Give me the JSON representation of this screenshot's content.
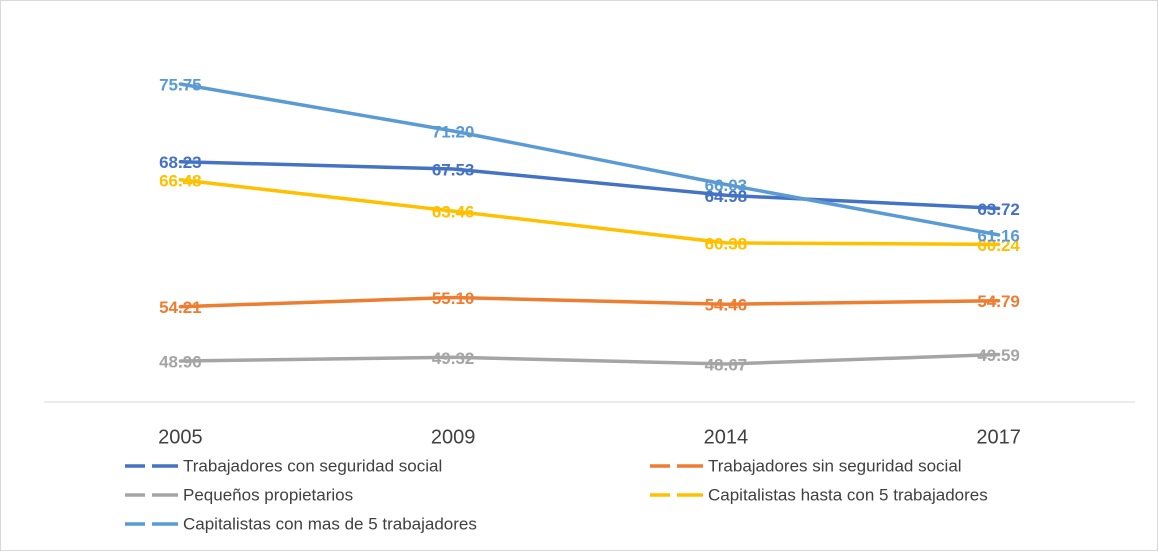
{
  "chart_data": {
    "type": "line",
    "categories": [
      "2005",
      "2009",
      "2014",
      "2017"
    ],
    "ylim": [
      45,
      80
    ],
    "series": [
      {
        "name": "Trabajadores con seguridad social",
        "color": "#4472c4",
        "values": [
          68.23,
          67.53,
          64.98,
          63.72
        ],
        "value_labels": [
          "68.23",
          "67.53",
          "64.98",
          "63.72"
        ]
      },
      {
        "name": "Trabajadores sin seguridad social",
        "color": "#ed7d31",
        "values": [
          54.21,
          55.1,
          54.46,
          54.79
        ],
        "value_labels": [
          "54.21",
          "55.10",
          "54.46",
          "54.79"
        ]
      },
      {
        "name": "Pequeños propietarios",
        "color": "#a5a5a5",
        "values": [
          48.96,
          49.32,
          48.67,
          49.59
        ],
        "value_labels": [
          "48.96",
          "49.32",
          "48.67",
          "49.59"
        ]
      },
      {
        "name": "Capitalistas hasta con 5 trabajadores",
        "color": "#ffc000",
        "values": [
          66.48,
          63.46,
          60.38,
          60.24
        ],
        "value_labels": [
          "66.48",
          "63.46",
          "60.38",
          "60.24"
        ]
      },
      {
        "name": "Capitalistas con mas de 5 trabajadores",
        "color": "#5b9bd5",
        "values": [
          75.75,
          71.2,
          66.03,
          61.16
        ],
        "value_labels": [
          "75.75",
          "71.20",
          "66.03",
          "61.16"
        ]
      }
    ]
  }
}
